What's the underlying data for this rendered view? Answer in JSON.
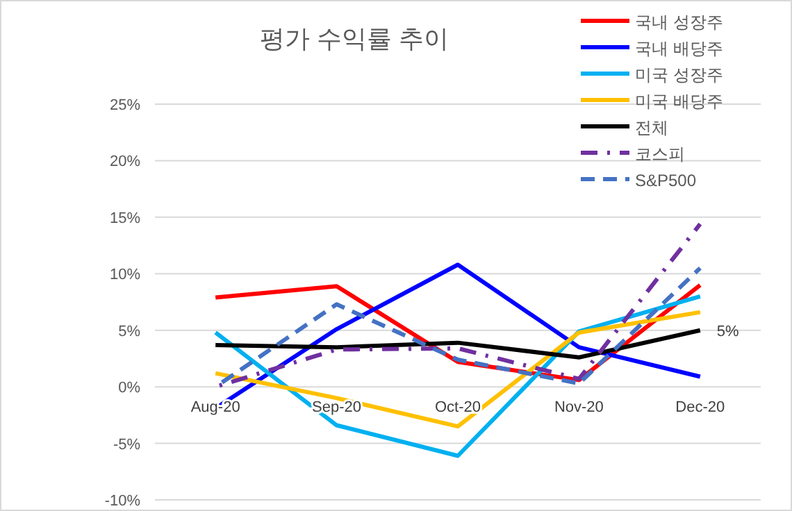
{
  "chart_data": {
    "type": "line",
    "title": "평가 수익률 추이",
    "categories": [
      "Aug-20",
      "Sep-20",
      "Oct-20",
      "Nov-20",
      "Dec-20"
    ],
    "series": [
      {
        "name": "국내 성장주",
        "color": "#ff0000",
        "values": [
          7.9,
          8.9,
          2.2,
          0.6,
          9.0
        ]
      },
      {
        "name": "국내 배당주",
        "color": "#0000ff",
        "values": [
          -1.9,
          5.1,
          10.8,
          3.5,
          0.9
        ]
      },
      {
        "name": "미국 성장주",
        "color": "#00b0f0",
        "values": [
          4.8,
          -3.4,
          -6.1,
          4.9,
          8.0
        ]
      },
      {
        "name": "미국 배당주",
        "color": "#ffc000",
        "values": [
          1.2,
          -1.0,
          -3.5,
          4.8,
          6.6
        ]
      },
      {
        "name": "전체",
        "color": "#000000",
        "values": [
          3.7,
          3.5,
          3.9,
          2.6,
          5.0
        ],
        "value_labels": [
          null,
          null,
          null,
          null,
          "5%"
        ]
      },
      {
        "name": "코스피",
        "color": "#7030a0",
        "values": [
          0.0,
          3.3,
          3.4,
          0.7,
          14.4
        ],
        "line_style": "dashdot"
      },
      {
        "name": "S&P500",
        "color": "#4472c4",
        "values": [
          0.0,
          7.3,
          2.4,
          0.3,
          10.5
        ],
        "line_style": "dashed"
      }
    ],
    "ylim": [
      -10,
      25
    ],
    "yticks": [
      {
        "value": -10,
        "label": "-10%"
      },
      {
        "value": -5,
        "label": "-5%"
      },
      {
        "value": 0,
        "label": "0%"
      },
      {
        "value": 5,
        "label": "5%"
      },
      {
        "value": 10,
        "label": "10%"
      },
      {
        "value": 15,
        "label": "15%"
      },
      {
        "value": 20,
        "label": "20%"
      },
      {
        "value": 25,
        "label": "25%"
      }
    ],
    "grid": "y",
    "legend": "top right"
  }
}
